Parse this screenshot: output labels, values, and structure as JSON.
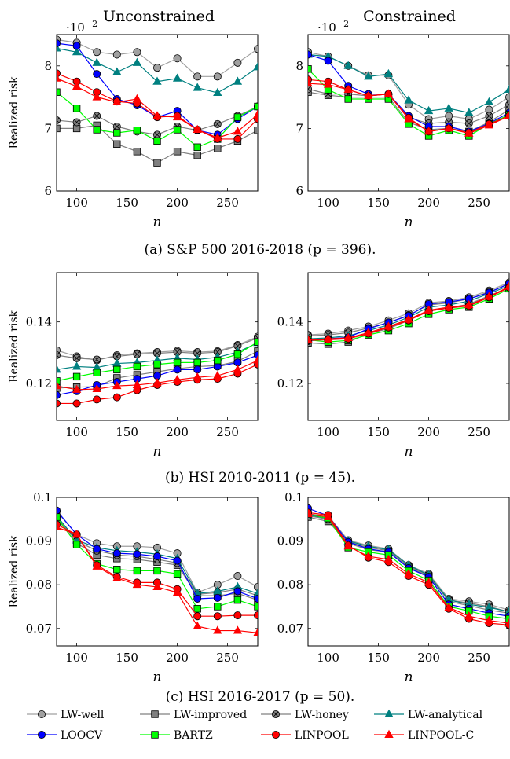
{
  "panel_titles": [
    "Unconstrained",
    "Constrained"
  ],
  "ylabel": "Realized risk",
  "xlabel": "n",
  "captions": [
    "(a) S&P 500 2016-2018 (p = 396).",
    "(b) HSI 2010-2011 (p = 45).",
    "(c) HSI 2016-2017 (p = 50)."
  ],
  "sci_multiplier": "·10^-2",
  "series_styles": [
    {
      "name": "LW-well",
      "color": "#a0a0a0",
      "marker": "circle"
    },
    {
      "name": "LW-improved",
      "color": "#808080",
      "marker": "square"
    },
    {
      "name": "LW-honey",
      "color": "#808080",
      "marker": "otimes"
    },
    {
      "name": "LW-analytical",
      "color": "#008080",
      "marker": "triangle"
    },
    {
      "name": "LOOCV",
      "color": "#0000ff",
      "marker": "circle"
    },
    {
      "name": "BARTZ",
      "color": "#00ff00",
      "marker": "square"
    },
    {
      "name": "LINPOOL",
      "color": "#ff0000",
      "marker": "circle"
    },
    {
      "name": "LINPOOL-C",
      "color": "#ff0000",
      "marker": "triangle"
    }
  ],
  "chart_data": [
    {
      "type": "line",
      "panel": "(a) Unconstrained",
      "x": [
        80,
        100,
        120,
        140,
        160,
        180,
        200,
        220,
        240,
        260,
        280
      ],
      "xlim": [
        80,
        280
      ],
      "ylim": [
        6,
        8.5
      ],
      "yticks": [
        6,
        7,
        8
      ],
      "xticks": [
        100,
        150,
        200,
        250
      ],
      "xlabel": "n",
      "ylabel": "Realized risk",
      "scale_note": "·10^-2",
      "series": [
        {
          "name": "LW-well",
          "values": [
            8.42,
            8.37,
            8.22,
            8.18,
            8.22,
            7.97,
            8.12,
            7.83,
            7.83,
            8.05,
            8.27
          ]
        },
        {
          "name": "LW-improved",
          "values": [
            7.0,
            7.0,
            7.05,
            6.75,
            6.63,
            6.45,
            6.63,
            6.57,
            6.68,
            6.8,
            6.97
          ]
        },
        {
          "name": "LW-honey",
          "values": [
            7.13,
            7.1,
            7.2,
            7.03,
            6.95,
            6.9,
            7.03,
            6.97,
            7.07,
            7.2,
            7.35
          ]
        },
        {
          "name": "LW-analytical",
          "values": [
            8.28,
            8.22,
            8.05,
            7.9,
            8.05,
            7.75,
            7.8,
            7.65,
            7.57,
            7.75,
            7.98
          ]
        },
        {
          "name": "LOOCV",
          "values": [
            8.36,
            8.32,
            7.87,
            7.47,
            7.37,
            7.18,
            7.28,
            6.97,
            6.9,
            7.15,
            7.35
          ]
        },
        {
          "name": "BARTZ",
          "values": [
            7.58,
            7.32,
            6.98,
            6.93,
            6.97,
            6.8,
            6.98,
            6.7,
            6.83,
            7.18,
            7.35
          ]
        },
        {
          "name": "LINPOOL",
          "values": [
            7.88,
            7.75,
            7.58,
            7.43,
            7.4,
            7.18,
            7.2,
            6.98,
            6.83,
            6.83,
            7.15
          ]
        },
        {
          "name": "LINPOOL-C",
          "values": [
            7.8,
            7.67,
            7.5,
            7.42,
            7.47,
            7.2,
            7.18,
            6.98,
            6.85,
            6.95,
            7.22
          ]
        }
      ]
    },
    {
      "type": "line",
      "panel": "(a) Constrained",
      "x": [
        80,
        100,
        120,
        140,
        160,
        180,
        200,
        220,
        240,
        260,
        280
      ],
      "xlim": [
        80,
        280
      ],
      "ylim": [
        6,
        8.5
      ],
      "yticks": [
        6,
        7,
        8
      ],
      "xticks": [
        100,
        150,
        200,
        250
      ],
      "xlabel": "n",
      "scale_note": "·10^-2",
      "series": [
        {
          "name": "LW-well",
          "values": [
            8.22,
            8.15,
            8.0,
            7.85,
            7.85,
            7.38,
            7.15,
            7.2,
            7.15,
            7.3,
            7.5
          ]
        },
        {
          "name": "LW-improved",
          "values": [
            7.58,
            7.53,
            7.5,
            7.5,
            7.5,
            7.1,
            6.98,
            7.0,
            6.95,
            7.1,
            7.3
          ]
        },
        {
          "name": "LW-honey",
          "values": [
            7.63,
            7.55,
            7.55,
            7.52,
            7.55,
            7.17,
            7.08,
            7.1,
            7.08,
            7.2,
            7.38
          ]
        },
        {
          "name": "LW-analytical",
          "values": [
            8.18,
            8.15,
            8.0,
            7.83,
            7.87,
            7.45,
            7.28,
            7.32,
            7.25,
            7.42,
            7.62
          ]
        },
        {
          "name": "LOOCV",
          "values": [
            8.18,
            8.08,
            7.68,
            7.55,
            7.55,
            7.2,
            7.03,
            7.03,
            6.95,
            7.08,
            7.25
          ]
        },
        {
          "name": "BARTZ",
          "values": [
            7.95,
            7.62,
            7.47,
            7.47,
            7.47,
            7.07,
            6.88,
            6.97,
            6.88,
            7.07,
            7.22
          ]
        },
        {
          "name": "LINPOOL",
          "values": [
            7.78,
            7.75,
            7.62,
            7.52,
            7.55,
            7.17,
            6.95,
            7.0,
            6.93,
            7.07,
            7.2
          ]
        },
        {
          "name": "LINPOOL-C",
          "values": [
            7.72,
            7.7,
            7.62,
            7.52,
            7.55,
            7.15,
            6.95,
            7.0,
            6.92,
            7.05,
            7.2
          ]
        }
      ]
    },
    {
      "type": "line",
      "panel": "(b) Unconstrained",
      "x": [
        80,
        100,
        120,
        140,
        160,
        180,
        200,
        220,
        240,
        260,
        280
      ],
      "xlim": [
        80,
        280
      ],
      "ylim": [
        0.108,
        0.156
      ],
      "yticks": [
        0.12,
        0.14
      ],
      "xticks": [
        100,
        150,
        200,
        250
      ],
      "xlabel": "n",
      "ylabel": "Realized risk",
      "series": [
        {
          "name": "LW-well",
          "values": [
            0.1308,
            0.1288,
            0.1275,
            0.1292,
            0.1298,
            0.1302,
            0.1306,
            0.1302,
            0.1305,
            0.1325,
            0.1352
          ]
        },
        {
          "name": "LW-improved",
          "values": [
            0.1185,
            0.1188,
            0.119,
            0.1218,
            0.1228,
            0.1238,
            0.1248,
            0.1255,
            0.1258,
            0.1272,
            0.1305
          ]
        },
        {
          "name": "LW-honey",
          "values": [
            0.1292,
            0.1282,
            0.1278,
            0.1288,
            0.1295,
            0.1298,
            0.1302,
            0.1298,
            0.1302,
            0.1322,
            0.1348
          ]
        },
        {
          "name": "LW-analytical",
          "values": [
            0.1245,
            0.1255,
            0.1252,
            0.1265,
            0.1268,
            0.1275,
            0.1282,
            0.1278,
            0.1285,
            0.1302,
            0.1332
          ]
        },
        {
          "name": "LOOCV",
          "values": [
            0.1162,
            0.1175,
            0.1195,
            0.1205,
            0.1215,
            0.1225,
            0.1245,
            0.1245,
            0.1255,
            0.1268,
            0.1292
          ]
        },
        {
          "name": "BARTZ",
          "values": [
            0.1208,
            0.1222,
            0.1235,
            0.1245,
            0.1255,
            0.1262,
            0.1268,
            0.1268,
            0.1275,
            0.1295,
            0.1335
          ]
        },
        {
          "name": "LINPOOL",
          "values": [
            0.1135,
            0.1135,
            0.1148,
            0.1155,
            0.1178,
            0.1195,
            0.1205,
            0.1212,
            0.1215,
            0.1232,
            0.1262
          ]
        },
        {
          "name": "LINPOOL-C",
          "values": [
            0.1192,
            0.118,
            0.1182,
            0.1192,
            0.1195,
            0.1202,
            0.1212,
            0.122,
            0.1225,
            0.1245,
            0.1275
          ]
        }
      ]
    },
    {
      "type": "line",
      "panel": "(b) Constrained",
      "x": [
        80,
        100,
        120,
        140,
        160,
        180,
        200,
        220,
        240,
        260,
        280
      ],
      "xlim": [
        80,
        280
      ],
      "ylim": [
        0.108,
        0.156
      ],
      "yticks": [
        0.12,
        0.14
      ],
      "xticks": [
        100,
        150,
        200,
        250
      ],
      "xlabel": "n",
      "series": [
        {
          "name": "LW-well",
          "values": [
            0.1358,
            0.1362,
            0.1372,
            0.1385,
            0.1405,
            0.1428,
            0.1462,
            0.1468,
            0.148,
            0.1502,
            0.1528
          ]
        },
        {
          "name": "LW-improved",
          "values": [
            0.1332,
            0.1328,
            0.1335,
            0.1362,
            0.1378,
            0.1405,
            0.1435,
            0.1445,
            0.1458,
            0.1485,
            0.1512
          ]
        },
        {
          "name": "LW-honey",
          "values": [
            0.1355,
            0.1358,
            0.1365,
            0.138,
            0.1398,
            0.1422,
            0.1455,
            0.1462,
            0.1475,
            0.1498,
            0.1522
          ]
        },
        {
          "name": "LW-analytical",
          "values": [
            0.1345,
            0.1348,
            0.1355,
            0.1372,
            0.139,
            0.1415,
            0.1448,
            0.1455,
            0.1468,
            0.1492,
            0.1518
          ]
        },
        {
          "name": "LOOCV",
          "values": [
            0.1338,
            0.1345,
            0.135,
            0.1378,
            0.1398,
            0.142,
            0.1458,
            0.1465,
            0.1475,
            0.1495,
            0.1525
          ]
        },
        {
          "name": "BARTZ",
          "values": [
            0.1342,
            0.1335,
            0.134,
            0.1358,
            0.1372,
            0.1395,
            0.1425,
            0.144,
            0.1448,
            0.1475,
            0.1508
          ]
        },
        {
          "name": "LINPOOL",
          "values": [
            0.134,
            0.1342,
            0.1345,
            0.1362,
            0.1382,
            0.1405,
            0.1435,
            0.1445,
            0.1452,
            0.148,
            0.1512
          ]
        },
        {
          "name": "LINPOOL-C",
          "values": [
            0.1342,
            0.1345,
            0.1348,
            0.1365,
            0.1385,
            0.1408,
            0.1438,
            0.1448,
            0.1455,
            0.1482,
            0.1515
          ]
        }
      ]
    },
    {
      "type": "line",
      "panel": "(c) Unconstrained",
      "x": [
        80,
        100,
        120,
        140,
        160,
        180,
        200,
        220,
        240,
        260,
        280
      ],
      "xlim": [
        80,
        280
      ],
      "ylim": [
        0.066,
        0.1
      ],
      "yticks": [
        0.07,
        0.08,
        0.09,
        0.1
      ],
      "xticks": [
        100,
        150,
        200,
        250
      ],
      "xlabel": "n",
      "ylabel": "Realized risk",
      "series": [
        {
          "name": "LW-well",
          "values": [
            0.0968,
            0.0915,
            0.0895,
            0.0888,
            0.0888,
            0.0885,
            0.0872,
            0.0782,
            0.08,
            0.082,
            0.0795
          ]
        },
        {
          "name": "LW-improved",
          "values": [
            0.0952,
            0.0895,
            0.0868,
            0.086,
            0.0858,
            0.0852,
            0.0845,
            0.0775,
            0.0775,
            0.078,
            0.0765
          ]
        },
        {
          "name": "LW-honey",
          "values": [
            0.0955,
            0.09,
            0.0878,
            0.0868,
            0.0865,
            0.0858,
            0.085,
            0.0778,
            0.0782,
            0.079,
            0.0775
          ]
        },
        {
          "name": "LW-analytical",
          "values": [
            0.0958,
            0.0902,
            0.0885,
            0.0878,
            0.0875,
            0.087,
            0.086,
            0.078,
            0.0785,
            0.0795,
            0.078
          ]
        },
        {
          "name": "LOOCV",
          "values": [
            0.097,
            0.0915,
            0.0882,
            0.0872,
            0.087,
            0.0865,
            0.0855,
            0.0768,
            0.077,
            0.0785,
            0.0768
          ]
        },
        {
          "name": "BARTZ",
          "values": [
            0.0955,
            0.0892,
            0.0848,
            0.0835,
            0.0832,
            0.0832,
            0.0825,
            0.0745,
            0.075,
            0.0765,
            0.075
          ]
        },
        {
          "name": "LINPOOL",
          "values": [
            0.0938,
            0.0915,
            0.0845,
            0.0818,
            0.0805,
            0.0805,
            0.079,
            0.0728,
            0.0728,
            0.073,
            0.073
          ]
        },
        {
          "name": "LINPOOL-C",
          "values": [
            0.0932,
            0.0915,
            0.0842,
            0.0815,
            0.08,
            0.0795,
            0.0782,
            0.0705,
            0.0695,
            0.0695,
            0.069
          ]
        }
      ]
    },
    {
      "type": "line",
      "panel": "(c) Constrained",
      "x": [
        80,
        100,
        120,
        140,
        160,
        180,
        200,
        220,
        240,
        260,
        280
      ],
      "xlim": [
        80,
        280
      ],
      "ylim": [
        0.066,
        0.1
      ],
      "yticks": [
        0.07,
        0.08,
        0.09,
        0.1
      ],
      "xticks": [
        100,
        150,
        200,
        250
      ],
      "xlabel": "n",
      "series": [
        {
          "name": "LW-well",
          "values": [
            0.0962,
            0.0958,
            0.0902,
            0.089,
            0.0882,
            0.0845,
            0.0825,
            0.0768,
            0.0762,
            0.0755,
            0.0742
          ]
        },
        {
          "name": "LW-improved",
          "values": [
            0.0955,
            0.0945,
            0.0895,
            0.088,
            0.0875,
            0.084,
            0.082,
            0.0762,
            0.0752,
            0.0742,
            0.0735
          ]
        },
        {
          "name": "LW-honey",
          "values": [
            0.0958,
            0.095,
            0.0898,
            0.0885,
            0.0878,
            0.0842,
            0.0822,
            0.0765,
            0.0758,
            0.075,
            0.0738
          ]
        },
        {
          "name": "LW-analytical",
          "values": [
            0.096,
            0.0952,
            0.09,
            0.0888,
            0.088,
            0.0845,
            0.0822,
            0.0765,
            0.0755,
            0.0748,
            0.0738
          ]
        },
        {
          "name": "LOOCV",
          "values": [
            0.0975,
            0.0958,
            0.0898,
            0.0882,
            0.0875,
            0.0838,
            0.0818,
            0.0755,
            0.0745,
            0.0735,
            0.0728
          ]
        },
        {
          "name": "BARTZ",
          "values": [
            0.0962,
            0.0952,
            0.0885,
            0.0875,
            0.0868,
            0.0832,
            0.081,
            0.075,
            0.074,
            0.0728,
            0.0722
          ]
        },
        {
          "name": "LINPOOL",
          "values": [
            0.0965,
            0.096,
            0.089,
            0.0862,
            0.0852,
            0.082,
            0.08,
            0.0745,
            0.0722,
            0.0712,
            0.0708
          ]
        },
        {
          "name": "LINPOOL-C",
          "values": [
            0.0962,
            0.0955,
            0.0888,
            0.0865,
            0.0858,
            0.0825,
            0.0805,
            0.0748,
            0.0728,
            0.0718,
            0.0712
          ]
        }
      ]
    }
  ]
}
